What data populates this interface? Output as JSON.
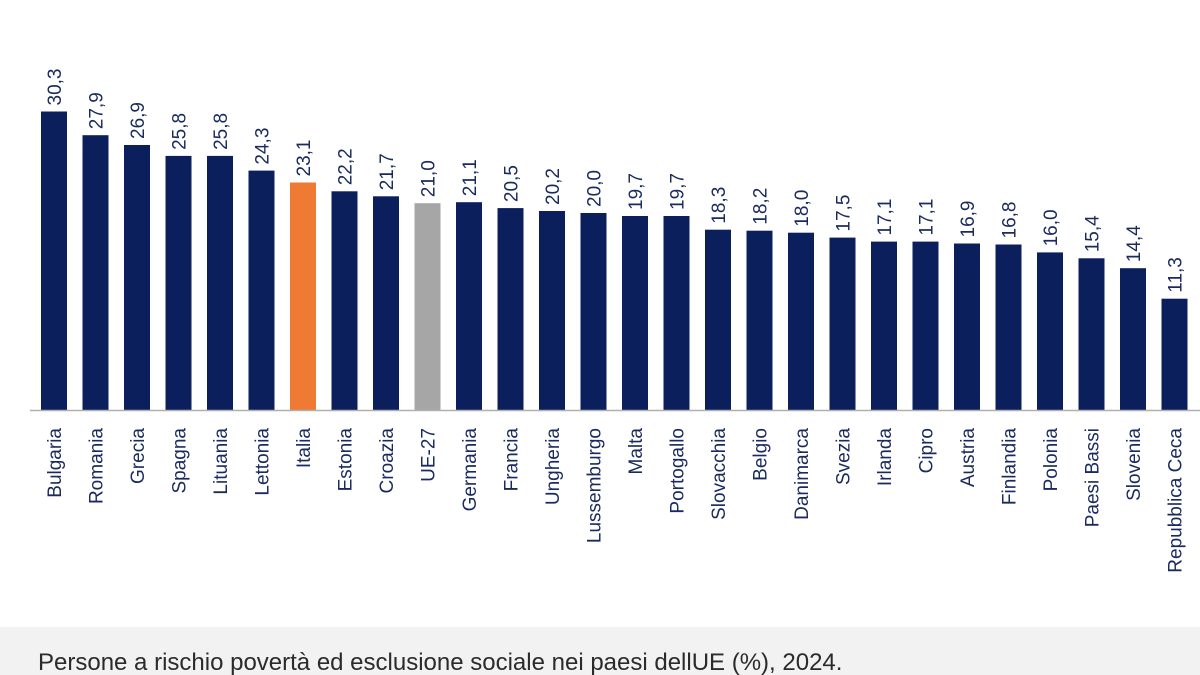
{
  "caption": "Persone a rischio povertà ed esclusione sociale nei paesi dellUE (%), 2024.",
  "colors": {
    "default": "#0b1f5c",
    "italia": "#ee7a33",
    "ue27": "#a6a6a6",
    "axis": "#b0b0b0",
    "text": "#1a2a5e"
  },
  "chart_data": {
    "type": "bar",
    "orientation": "vertical",
    "value_format": "comma-decimal",
    "categories": [
      "Bulgaria",
      "Romania",
      "Grecia",
      "Spagna",
      "Lituania",
      "Lettonia",
      "Italia",
      "Estonia",
      "Croazia",
      "UE-27",
      "Germania",
      "Francia",
      "Ungheria",
      "Lussemburgo",
      "Malta",
      "Portogallo",
      "Slovacchia",
      "Belgio",
      "Danimarca",
      "Svezia",
      "Irlanda",
      "Cipro",
      "Austria",
      "Finlandia",
      "Polonia",
      "Paesi Bassi",
      "Slovenia",
      "Repubblica Ceca"
    ],
    "values": [
      30.3,
      27.9,
      26.9,
      25.8,
      25.8,
      24.3,
      23.1,
      22.2,
      21.7,
      21.0,
      21.1,
      20.5,
      20.2,
      20.0,
      19.7,
      19.7,
      18.3,
      18.2,
      18.0,
      17.5,
      17.1,
      17.1,
      16.9,
      16.8,
      16.0,
      15.4,
      14.4,
      11.3
    ],
    "value_labels": [
      "30,3",
      "27,9",
      "26,9",
      "25,8",
      "25,8",
      "24,3",
      "23,1",
      "22,2",
      "21,7",
      "21,0",
      "21,1",
      "20,5",
      "20,2",
      "20,0",
      "19,7",
      "19,7",
      "18,3",
      "18,2",
      "18,0",
      "17,5",
      "17,1",
      "17,1",
      "16,9",
      "16,8",
      "16,0",
      "15,4",
      "14,4",
      "11,3"
    ],
    "highlight": {
      "Italia": "italia",
      "UE-27": "ue27"
    },
    "grid": false,
    "legend": "none"
  }
}
